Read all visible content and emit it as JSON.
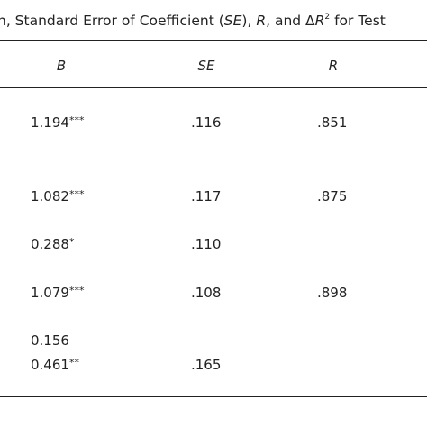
{
  "title": [
    "n, Standard Error of Coefficient (",
    "SE",
    "), ",
    "R",
    ", and Δ",
    "R",
    "2",
    " for Test"
  ],
  "table": {
    "headers": [
      "B",
      "SE",
      "R"
    ],
    "rows": [
      {
        "B": {
          "value": "1.194",
          "sig": "***"
        },
        "SE": ".116",
        "R": ".851"
      },
      {
        "B": {
          "value": "1.082",
          "sig": "***"
        },
        "SE": ".117",
        "R": ".875"
      },
      {
        "B": {
          "value": "0.288",
          "sig": "*"
        },
        "SE": ".110"
      },
      {
        "B": {
          "value": "1.079",
          "sig": "***"
        },
        "SE": ".108",
        "R": ".898"
      },
      {
        "B": {
          "value": "0.156"
        }
      },
      {
        "B": {
          "value": "0.461",
          "sig": "**"
        },
        "SE": ".165"
      }
    ]
  }
}
